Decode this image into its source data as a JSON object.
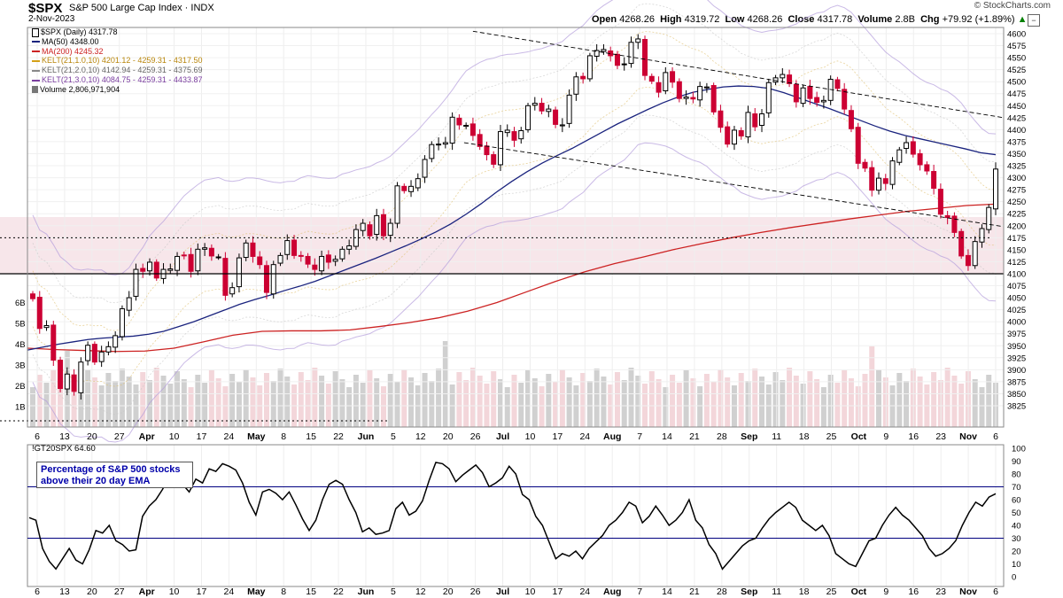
{
  "header": {
    "symbol": "$SPX",
    "name": "S&P 500 Large Cap Index",
    "exchange": "INDX",
    "date": "2-Nov-2023",
    "brand": "© StockCharts.com",
    "collapse_icon": "minus-icon"
  },
  "quote": {
    "open_label": "Open",
    "open": "4268.26",
    "high_label": "High",
    "high": "4319.72",
    "low_label": "Low",
    "low": "4268.26",
    "close_label": "Close",
    "close": "4317.78",
    "volume_label": "Volume",
    "volume": "2.8B",
    "chg_label": "Chg",
    "chg": "+79.92 (+1.89%)",
    "chg_icon": "up-arrow-icon"
  },
  "legend": [
    {
      "text": "$SPX (Daily) 4317.78",
      "color": "#000000",
      "icon": "candle-icon"
    },
    {
      "text": "MA(50) 4348.00",
      "color": "#1a237e"
    },
    {
      "text": "MA(200) 4245.32",
      "color": "#cc2222"
    },
    {
      "text": "KELT(21,1.0,10) 4201.12 - 4259.31 - 4317.50",
      "color": "#d4a017"
    },
    {
      "text": "KELT(21,2.0,10) 4142.94 - 4259.31 - 4375.69",
      "color": "#888888"
    },
    {
      "text": "KELT(21,3.0,10) 4084.75 - 4259.31 - 4433.87",
      "color": "#7b3fa0"
    },
    {
      "text": "Volume 2,806,971,904",
      "color": "#666666",
      "icon": "volume-bar-icon"
    }
  ],
  "indicator": {
    "label": "!GT20SPX 64.60",
    "annotation_line1": "Percentage of S&P 500 stocks",
    "annotation_line2": "above their 20 day EMA"
  },
  "colors": {
    "up": "#000000",
    "down": "#cc0033",
    "ma50": "#1a237e",
    "ma200": "#cc2222",
    "support_zone": "#f7e6ea",
    "indicator_line": "#000000",
    "ref_lines": "#000080"
  },
  "chart_data": [
    {
      "type": "candlestick",
      "title": "$SPX (Daily)",
      "ylim": [
        3800,
        4612
      ],
      "y_ticks": [
        3825,
        3850,
        3875,
        3900,
        3925,
        3950,
        3975,
        4000,
        4025,
        4050,
        4075,
        4100,
        4125,
        4150,
        4175,
        4200,
        4225,
        4250,
        4275,
        4300,
        4325,
        4350,
        4375,
        4400,
        4425,
        4450,
        4475,
        4500,
        4525,
        4550,
        4575,
        4600
      ],
      "volume_ticks": [
        "1B",
        "2B",
        "3B",
        "4B",
        "5B",
        "6B"
      ],
      "x_ticks": [
        "6",
        "13",
        "20",
        "27",
        "Apr",
        "10",
        "17",
        "24",
        "May",
        "8",
        "15",
        "22",
        "Jun",
        "5",
        "12",
        "20",
        "26",
        "Jul",
        "10",
        "17",
        "24",
        "Aug",
        "7",
        "14",
        "21",
        "28",
        "Sep",
        "11",
        "18",
        "25",
        "Oct",
        "9",
        "16",
        "23",
        "Nov",
        "6"
      ],
      "bold_x_ticks": [
        "Apr",
        "May",
        "Jun",
        "Jul",
        "Aug",
        "Sep",
        "Oct",
        "Nov"
      ],
      "close_series": [
        4048,
        3986,
        3992,
        3920,
        3861,
        3891,
        3855,
        3916,
        3951,
        3916,
        3937,
        3948,
        3971,
        4027,
        4050,
        4109,
        4105,
        4124,
        4091,
        4109,
        4110,
        4136,
        4138,
        4105,
        4151,
        4154,
        4137,
        4135,
        4055,
        4071,
        4133,
        4164,
        4136,
        4119,
        4061,
        4119,
        4138,
        4169,
        4138,
        4137,
        4120,
        4109,
        4136,
        4124,
        4130,
        4151,
        4158,
        4192,
        4205,
        4179,
        4221,
        4179,
        4205,
        4283,
        4273,
        4282,
        4298,
        4338,
        4369,
        4370,
        4373,
        4426,
        4410,
        4409,
        4388,
        4365,
        4348,
        4328,
        4396,
        4399,
        4378,
        4398,
        4450,
        4455,
        4439,
        4443,
        4411,
        4410,
        4472,
        4510,
        4506,
        4554,
        4565,
        4567,
        4554,
        4534,
        4537,
        4582,
        4589,
        4513,
        4501,
        4478,
        4519,
        4499,
        4465,
        4468,
        4464,
        4490,
        4489,
        4437,
        4405,
        4370,
        4399,
        4387,
        4436,
        4406,
        4433,
        4498,
        4508,
        4515,
        4496,
        4458,
        4487,
        4465,
        4457,
        4461,
        4505,
        4486,
        4443,
        4402,
        4330,
        4320,
        4274,
        4299,
        4288,
        4335,
        4358,
        4373,
        4349,
        4327,
        4314,
        4278,
        4224,
        4217,
        4186,
        4137,
        4117,
        4167,
        4194,
        4238,
        4318
      ],
      "ma50_series": [
        3941,
        3947,
        3953,
        3958,
        3963,
        3966,
        3968,
        3970,
        3974,
        3980,
        3990,
        4000,
        4012,
        4024,
        4036,
        4046,
        4055,
        4065,
        4074,
        4084,
        4096,
        4108,
        4120,
        4132,
        4145,
        4158,
        4172,
        4187,
        4204,
        4224,
        4246,
        4270,
        4292,
        4312,
        4330,
        4346,
        4361,
        4378,
        4395,
        4412,
        4427,
        4442,
        4456,
        4468,
        4478,
        4484,
        4489,
        4491,
        4490,
        4486,
        4477,
        4466,
        4455,
        4444,
        4432,
        4420,
        4408,
        4397,
        4388,
        4381,
        4374,
        4367,
        4360,
        4352,
        4348
      ],
      "ma200_series": [
        3945,
        3942,
        3940,
        3938,
        3939,
        3945,
        3958,
        3972,
        3980,
        3981,
        3981,
        3983,
        3990,
        3998,
        4008,
        4022,
        4040,
        4062,
        4084,
        4104,
        4121,
        4135,
        4150,
        4163,
        4175,
        4186,
        4196,
        4205,
        4214,
        4222,
        4230,
        4236,
        4242,
        4245
      ],
      "resistance_lines": [
        4175,
        4100
      ],
      "support_zone": [
        4100,
        4218
      ]
    },
    {
      "type": "line",
      "title": "!GT20SPX",
      "ylim": [
        0,
        100
      ],
      "y_ticks": [
        0,
        10,
        20,
        30,
        40,
        50,
        60,
        70,
        80,
        90,
        100
      ],
      "reference_lines": [
        70,
        30
      ],
      "values": [
        46,
        44,
        22,
        12,
        6,
        14,
        22,
        13,
        10,
        21,
        36,
        34,
        40,
        28,
        25,
        20,
        21,
        47,
        55,
        60,
        68,
        78,
        74,
        72,
        66,
        76,
        73,
        84,
        82,
        88,
        86,
        83,
        73,
        58,
        48,
        66,
        68,
        65,
        60,
        66,
        56,
        45,
        36,
        44,
        60,
        72,
        75,
        72,
        60,
        50,
        35,
        38,
        33,
        34,
        36,
        53,
        58,
        48,
        51,
        59,
        75,
        89,
        88,
        84,
        74,
        79,
        83,
        87,
        81,
        70,
        73,
        77,
        86,
        80,
        64,
        60,
        47,
        40,
        27,
        14,
        18,
        16,
        20,
        14,
        22,
        27,
        32,
        40,
        44,
        50,
        58,
        55,
        42,
        47,
        55,
        48,
        40,
        44,
        50,
        60,
        44,
        38,
        25,
        18,
        6,
        12,
        18,
        24,
        28,
        30,
        38,
        45,
        50,
        54,
        58,
        54,
        44,
        40,
        36,
        40,
        32,
        18,
        14,
        10,
        8,
        18,
        28,
        30,
        40,
        48,
        54,
        48,
        44,
        38,
        32,
        22,
        16,
        18,
        22,
        28,
        40,
        50,
        58,
        55,
        62,
        64.6
      ]
    }
  ]
}
